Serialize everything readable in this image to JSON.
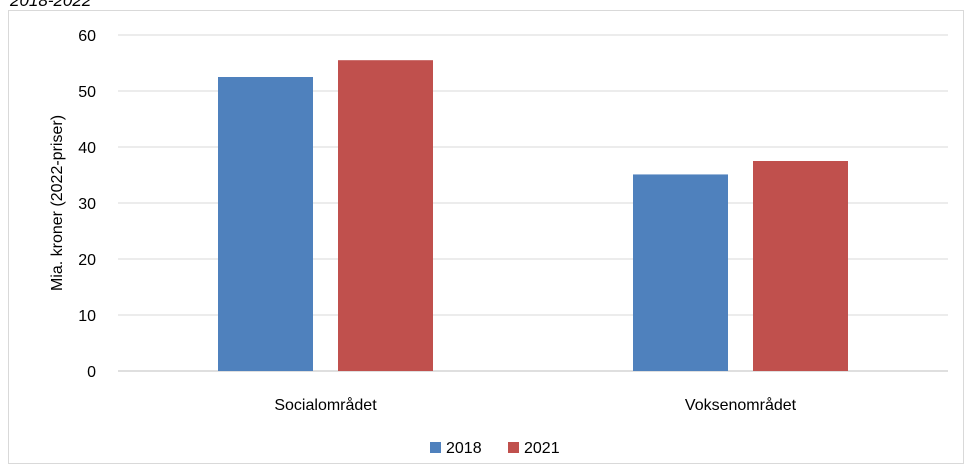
{
  "page_title": "2018-2022",
  "chart_data": {
    "type": "bar",
    "title": "",
    "ylabel": "Mia. kroner (2022-priser)",
    "xlabel": "",
    "ylim": [
      0,
      60
    ],
    "yticks": [
      0,
      10,
      20,
      30,
      40,
      50,
      60
    ],
    "grid": true,
    "legend_position": "bottom",
    "categories": [
      "Socialområdet",
      "Voksenområdet"
    ],
    "series": [
      {
        "name": "2018",
        "color": "#4f81bd",
        "values": [
          52.5,
          35.1
        ]
      },
      {
        "name": "2021",
        "color": "#c0504d",
        "values": [
          55.5,
          37.5
        ]
      }
    ]
  }
}
